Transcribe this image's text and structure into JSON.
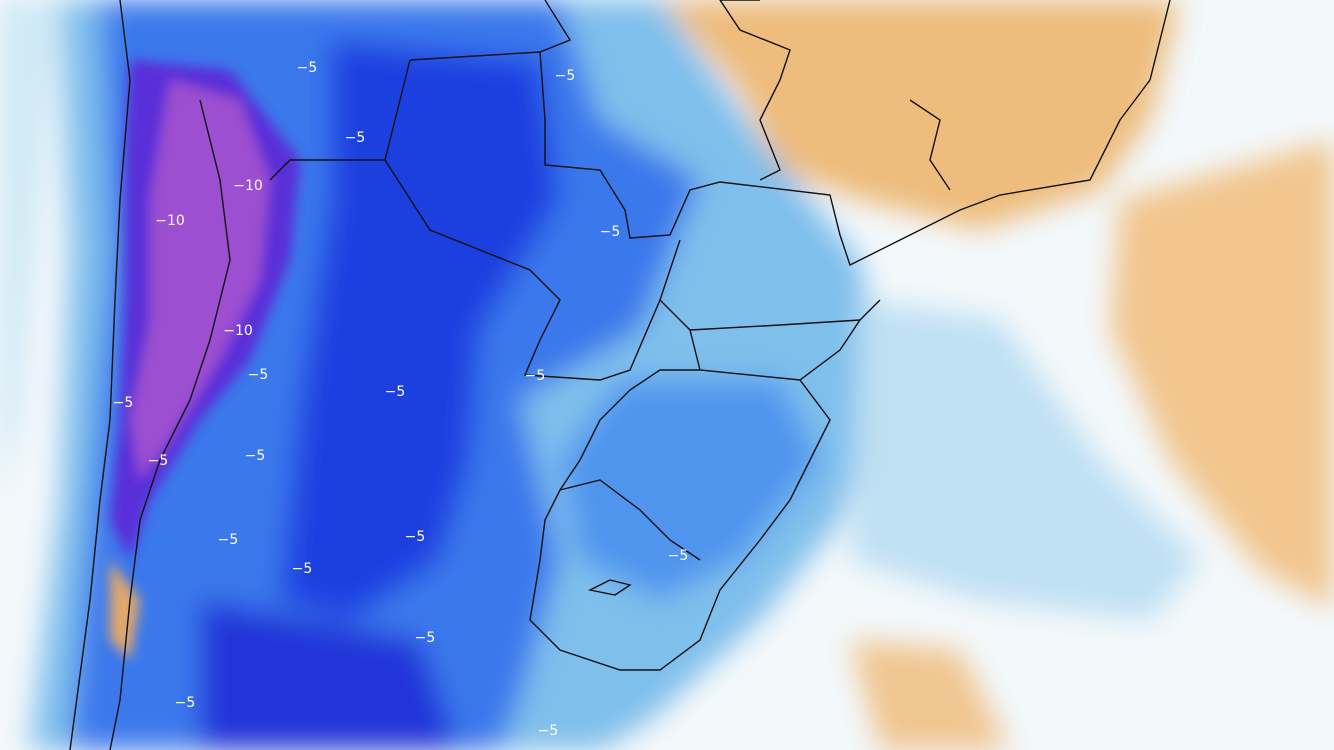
{
  "contour_labels": [
    "−5",
    "−5",
    "−5",
    "−10",
    "−10",
    "−5",
    "−10",
    "−5",
    "−5",
    "−5",
    "−5",
    "−5",
    "−5",
    "−5",
    "−5",
    "−5",
    "−5",
    "−5",
    "−5",
    "−5"
  ]
}
